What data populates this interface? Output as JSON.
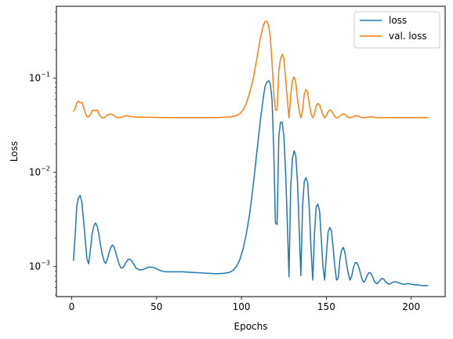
{
  "chart_data": {
    "type": "line",
    "title": "",
    "xlabel": "Epochs",
    "ylabel": "Loss",
    "xlim": [
      -9,
      220
    ],
    "ylim": [
      0.00048,
      0.58
    ],
    "yscale": "log",
    "grid": false,
    "legend_position": "top-right",
    "x_ticks": [
      {
        "value": 0,
        "label": "0"
      },
      {
        "value": 50,
        "label": "50"
      },
      {
        "value": 100,
        "label": "100"
      },
      {
        "value": 150,
        "label": "150"
      },
      {
        "value": 200,
        "label": "200"
      }
    ],
    "y_ticks": [
      {
        "value": 0.001,
        "base": "10",
        "exp": "−3"
      },
      {
        "value": 0.01,
        "base": "10",
        "exp": "−2"
      },
      {
        "value": 0.1,
        "base": "10",
        "exp": "−1"
      }
    ],
    "series": [
      {
        "name": "loss",
        "color": "#1f77b4",
        "points": [
          [
            1,
            0.00115
          ],
          [
            2,
            0.0021
          ],
          [
            3,
            0.0044
          ],
          [
            4,
            0.0054
          ],
          [
            5,
            0.0057
          ],
          [
            6,
            0.0048
          ],
          [
            7,
            0.0031
          ],
          [
            8,
            0.0019
          ],
          [
            9,
            0.0012
          ],
          [
            10,
            0.00107
          ],
          [
            11,
            0.0015
          ],
          [
            12,
            0.0022
          ],
          [
            13,
            0.0027
          ],
          [
            14,
            0.0029
          ],
          [
            15,
            0.0027
          ],
          [
            16,
            0.0022
          ],
          [
            17,
            0.0017
          ],
          [
            18,
            0.00135
          ],
          [
            19,
            0.00115
          ],
          [
            20,
            0.00108
          ],
          [
            21,
            0.0012
          ],
          [
            22,
            0.0014
          ],
          [
            23,
            0.0016
          ],
          [
            24,
            0.0017
          ],
          [
            25,
            0.0016
          ],
          [
            26,
            0.0014
          ],
          [
            27,
            0.0012
          ],
          [
            28,
            0.00105
          ],
          [
            29,
            0.00097
          ],
          [
            30,
            0.00097
          ],
          [
            31,
            0.00102
          ],
          [
            32,
            0.00111
          ],
          [
            33,
            0.00118
          ],
          [
            34,
            0.0012
          ],
          [
            35,
            0.00117
          ],
          [
            36,
            0.0011
          ],
          [
            37,
            0.00103
          ],
          [
            38,
            0.00096
          ],
          [
            40,
            0.00092
          ],
          [
            42,
            0.00093
          ],
          [
            44,
            0.00097
          ],
          [
            46,
            0.00099
          ],
          [
            48,
            0.00098
          ],
          [
            50,
            0.00095
          ],
          [
            52,
            0.00091
          ],
          [
            54,
            0.00089
          ],
          [
            56,
            0.00088
          ],
          [
            60,
            0.00088
          ],
          [
            65,
            0.00088
          ],
          [
            70,
            0.00087
          ],
          [
            75,
            0.00086
          ],
          [
            80,
            0.00085
          ],
          [
            85,
            0.00084
          ],
          [
            90,
            0.00085
          ],
          [
            93,
            0.00087
          ],
          [
            95,
            0.00091
          ],
          [
            97,
            0.001
          ],
          [
            99,
            0.00118
          ],
          [
            101,
            0.00155
          ],
          [
            103,
            0.0023
          ],
          [
            105,
            0.0038
          ],
          [
            107,
            0.0075
          ],
          [
            109,
            0.016
          ],
          [
            111,
            0.034
          ],
          [
            113,
            0.065
          ],
          [
            114,
            0.083
          ],
          [
            115,
            0.091
          ],
          [
            116,
            0.094
          ],
          [
            117,
            0.087
          ],
          [
            118,
            0.06
          ],
          [
            119,
            0.018
          ],
          [
            120,
            0.0029
          ],
          [
            121,
            0.0028
          ],
          [
            122,
            0.024
          ],
          [
            123,
            0.034
          ],
          [
            124,
            0.034
          ],
          [
            125,
            0.024
          ],
          [
            126,
            0.01
          ],
          [
            127,
            0.003
          ],
          [
            128,
            0.00078
          ],
          [
            129,
            0.0069
          ],
          [
            130,
            0.014
          ],
          [
            131,
            0.017
          ],
          [
            132,
            0.015
          ],
          [
            133,
            0.008
          ],
          [
            134,
            0.0025
          ],
          [
            135,
            0.0008
          ],
          [
            136,
            0.0044
          ],
          [
            137,
            0.008
          ],
          [
            138,
            0.0088
          ],
          [
            139,
            0.0078
          ],
          [
            140,
            0.004
          ],
          [
            141,
            0.0015
          ],
          [
            142,
            0.00072
          ],
          [
            143,
            0.0022
          ],
          [
            144,
            0.0043
          ],
          [
            145,
            0.0046
          ],
          [
            146,
            0.0039
          ],
          [
            147,
            0.002
          ],
          [
            148,
            0.001
          ],
          [
            149,
            0.00072
          ],
          [
            150,
            0.0013
          ],
          [
            151,
            0.0023
          ],
          [
            152,
            0.0026
          ],
          [
            153,
            0.0024
          ],
          [
            154,
            0.0016
          ],
          [
            155,
            0.001
          ],
          [
            156,
            0.00072
          ],
          [
            157,
            0.00075
          ],
          [
            158,
            0.0012
          ],
          [
            159,
            0.0015
          ],
          [
            160,
            0.0016
          ],
          [
            161,
            0.0014
          ],
          [
            162,
            0.00105
          ],
          [
            163,
            0.00083
          ],
          [
            164,
            0.00072
          ],
          [
            165,
            0.0008
          ],
          [
            166,
            0.00098
          ],
          [
            167,
            0.0011
          ],
          [
            168,
            0.0011
          ],
          [
            169,
            0.001
          ],
          [
            170,
            0.00086
          ],
          [
            171,
            0.00074
          ],
          [
            172,
            0.00068
          ],
          [
            173,
            0.00072
          ],
          [
            174,
            0.0008
          ],
          [
            175,
            0.00086
          ],
          [
            176,
            0.00086
          ],
          [
            177,
            0.0008
          ],
          [
            178,
            0.00072
          ],
          [
            179,
            0.00067
          ],
          [
            180,
            0.00066
          ],
          [
            181,
            0.00069
          ],
          [
            182,
            0.00073
          ],
          [
            183,
            0.00075
          ],
          [
            184,
            0.00073
          ],
          [
            185,
            0.00069
          ],
          [
            186,
            0.00066
          ],
          [
            187,
            0.00065
          ],
          [
            188,
            0.00066
          ],
          [
            189,
            0.00068
          ],
          [
            190,
            0.00069
          ],
          [
            191,
            0.00069
          ],
          [
            192,
            0.00068
          ],
          [
            193,
            0.00067
          ],
          [
            194,
            0.00066
          ],
          [
            195,
            0.00065
          ],
          [
            196,
            0.00065
          ],
          [
            198,
            0.00066
          ],
          [
            200,
            0.00065
          ],
          [
            202,
            0.00064
          ],
          [
            204,
            0.00064
          ],
          [
            206,
            0.00063
          ],
          [
            208,
            0.00063
          ],
          [
            210,
            0.00063
          ]
        ]
      },
      {
        "name": "val. loss",
        "color": "#ff7f0e",
        "points": [
          [
            1,
            0.044
          ],
          [
            2,
            0.048
          ],
          [
            3,
            0.055
          ],
          [
            4,
            0.057
          ],
          [
            5,
            0.055
          ],
          [
            6,
            0.055
          ],
          [
            7,
            0.049
          ],
          [
            8,
            0.043
          ],
          [
            9,
            0.039
          ],
          [
            10,
            0.039
          ],
          [
            11,
            0.041
          ],
          [
            12,
            0.045
          ],
          [
            13,
            0.046
          ],
          [
            14,
            0.045
          ],
          [
            15,
            0.046
          ],
          [
            16,
            0.042
          ],
          [
            17,
            0.039
          ],
          [
            18,
            0.038
          ],
          [
            19,
            0.038
          ],
          [
            20,
            0.039
          ],
          [
            21,
            0.041
          ],
          [
            22,
            0.041
          ],
          [
            23,
            0.042
          ],
          [
            24,
            0.041
          ],
          [
            25,
            0.04
          ],
          [
            26,
            0.039
          ],
          [
            27,
            0.038
          ],
          [
            28,
            0.0383
          ],
          [
            29,
            0.0383
          ],
          [
            30,
            0.039
          ],
          [
            32,
            0.04
          ],
          [
            34,
            0.0395
          ],
          [
            36,
            0.039
          ],
          [
            40,
            0.0385
          ],
          [
            45,
            0.0385
          ],
          [
            50,
            0.0383
          ],
          [
            55,
            0.0382
          ],
          [
            60,
            0.0382
          ],
          [
            65,
            0.0382
          ],
          [
            70,
            0.0382
          ],
          [
            75,
            0.0382
          ],
          [
            80,
            0.0382
          ],
          [
            85,
            0.0382
          ],
          [
            90,
            0.0385
          ],
          [
            94,
            0.039
          ],
          [
            97,
            0.04
          ],
          [
            99,
            0.042
          ],
          [
            101,
            0.046
          ],
          [
            103,
            0.055
          ],
          [
            105,
            0.072
          ],
          [
            107,
            0.1
          ],
          [
            109,
            0.16
          ],
          [
            111,
            0.26
          ],
          [
            113,
            0.37
          ],
          [
            114,
            0.4
          ],
          [
            115,
            0.4
          ],
          [
            116,
            0.36
          ],
          [
            117,
            0.27
          ],
          [
            118,
            0.15
          ],
          [
            119,
            0.07
          ],
          [
            120,
            0.046
          ],
          [
            121,
            0.046
          ],
          [
            122,
            0.12
          ],
          [
            123,
            0.16
          ],
          [
            124,
            0.18
          ],
          [
            125,
            0.16
          ],
          [
            126,
            0.1
          ],
          [
            127,
            0.06
          ],
          [
            128,
            0.038
          ],
          [
            129,
            0.065
          ],
          [
            130,
            0.095
          ],
          [
            131,
            0.103
          ],
          [
            132,
            0.09
          ],
          [
            133,
            0.06
          ],
          [
            134,
            0.045
          ],
          [
            135,
            0.038
          ],
          [
            136,
            0.045
          ],
          [
            137,
            0.068
          ],
          [
            138,
            0.076
          ],
          [
            139,
            0.07
          ],
          [
            140,
            0.053
          ],
          [
            141,
            0.042
          ],
          [
            142,
            0.038
          ],
          [
            143,
            0.042
          ],
          [
            144,
            0.051
          ],
          [
            145,
            0.054
          ],
          [
            146,
            0.052
          ],
          [
            147,
            0.046
          ],
          [
            148,
            0.041
          ],
          [
            149,
            0.038
          ],
          [
            150,
            0.04
          ],
          [
            151,
            0.044
          ],
          [
            152,
            0.046
          ],
          [
            153,
            0.045
          ],
          [
            154,
            0.042
          ],
          [
            155,
            0.039
          ],
          [
            156,
            0.038
          ],
          [
            157,
            0.038
          ],
          [
            158,
            0.04
          ],
          [
            159,
            0.041
          ],
          [
            160,
            0.042
          ],
          [
            161,
            0.041
          ],
          [
            162,
            0.0395
          ],
          [
            163,
            0.0385
          ],
          [
            164,
            0.038
          ],
          [
            165,
            0.0385
          ],
          [
            166,
            0.039
          ],
          [
            167,
            0.04
          ],
          [
            168,
            0.04
          ],
          [
            169,
            0.0395
          ],
          [
            170,
            0.0385
          ],
          [
            172,
            0.038
          ],
          [
            174,
            0.0385
          ],
          [
            176,
            0.039
          ],
          [
            178,
            0.0385
          ],
          [
            180,
            0.038
          ],
          [
            185,
            0.0382
          ],
          [
            190,
            0.0382
          ],
          [
            195,
            0.0382
          ],
          [
            200,
            0.0382
          ],
          [
            205,
            0.0382
          ],
          [
            210,
            0.0382
          ]
        ]
      }
    ]
  }
}
